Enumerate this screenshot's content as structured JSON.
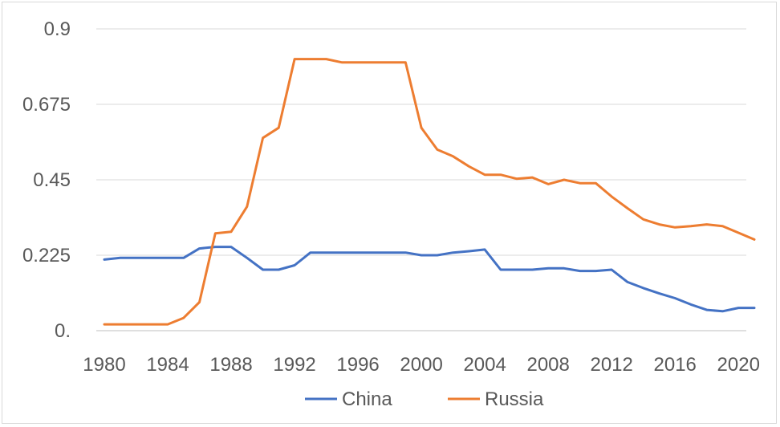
{
  "chart_data": {
    "type": "line",
    "title": "",
    "xlabel": "",
    "ylabel": "",
    "ylim": [
      0,
      0.9
    ],
    "xlim": [
      1980,
      2021
    ],
    "y_ticks": [
      {
        "value": 0,
        "label": "0."
      },
      {
        "value": 0.225,
        "label": "0.225"
      },
      {
        "value": 0.45,
        "label": "0.45"
      },
      {
        "value": 0.675,
        "label": "0.675"
      },
      {
        "value": 0.9,
        "label": "0.9"
      }
    ],
    "x_ticks": [
      1980,
      1984,
      1988,
      1992,
      1996,
      2000,
      2004,
      2008,
      2012,
      2016,
      2020
    ],
    "grid": "horizontal",
    "legend_position": "bottom",
    "x": [
      1980,
      1981,
      1982,
      1983,
      1984,
      1985,
      1986,
      1987,
      1988,
      1989,
      1990,
      1991,
      1992,
      1993,
      1994,
      1995,
      1996,
      1997,
      1998,
      1999,
      2000,
      2001,
      2002,
      2003,
      2004,
      2005,
      2006,
      2007,
      2008,
      2009,
      2010,
      2011,
      2012,
      2013,
      2014,
      2015,
      2016,
      2017,
      2018,
      2019,
      2020,
      2021
    ],
    "series": [
      {
        "name": "China",
        "color": "#4472c4",
        "values": [
          0.212,
          0.217,
          0.217,
          0.217,
          0.217,
          0.217,
          0.245,
          0.25,
          0.25,
          0.217,
          0.182,
          0.182,
          0.195,
          0.233,
          0.233,
          0.233,
          0.233,
          0.233,
          0.233,
          0.233,
          0.225,
          0.225,
          0.233,
          0.237,
          0.242,
          0.182,
          0.182,
          0.182,
          0.186,
          0.186,
          0.178,
          0.178,
          0.182,
          0.145,
          0.127,
          0.111,
          0.097,
          0.078,
          0.062,
          0.058,
          0.068,
          0.068
        ]
      },
      {
        "name": "Russia",
        "color": "#ed7d31",
        "values": [
          0.019,
          0.019,
          0.019,
          0.019,
          0.019,
          0.038,
          0.085,
          0.29,
          0.295,
          0.37,
          0.575,
          0.605,
          0.81,
          0.81,
          0.81,
          0.8,
          0.8,
          0.8,
          0.8,
          0.8,
          0.605,
          0.54,
          0.52,
          0.49,
          0.465,
          0.465,
          0.453,
          0.457,
          0.437,
          0.45,
          0.44,
          0.44,
          0.4,
          0.365,
          0.332,
          0.317,
          0.308,
          0.312,
          0.317,
          0.312,
          0.292,
          0.272
        ]
      }
    ]
  }
}
